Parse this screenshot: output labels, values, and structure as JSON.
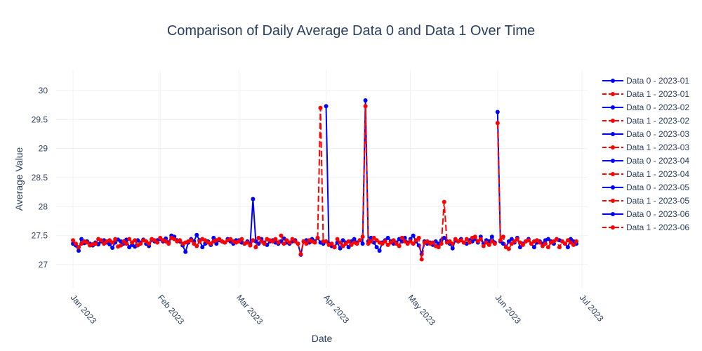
{
  "chart_data": {
    "type": "line",
    "title": "Comparison of Daily Average Data 0 and Data 1 Over Time",
    "xlabel": "Date",
    "ylabel": "Average Value",
    "xlim": [
      "2022-12-26",
      "2023-07-03"
    ],
    "ylim": [
      26.6,
      30.35
    ],
    "x_ticks": [
      "Jan 2023",
      "Feb 2023",
      "Mar 2023",
      "Apr 2023",
      "May 2023",
      "Jun 2023",
      "Jul 2023"
    ],
    "x_tick_dates": [
      "2023-01-01",
      "2023-02-01",
      "2023-03-01",
      "2023-04-01",
      "2023-05-01",
      "2023-06-01",
      "2023-07-01"
    ],
    "y_ticks": [
      27,
      27.5,
      28,
      28.5,
      29,
      29.5,
      30
    ],
    "y_tick_labels": [
      "27",
      "27.5",
      "28",
      "28.5",
      "29",
      "29.5",
      "30"
    ],
    "grid": true,
    "legend_position": "right",
    "colors": {
      "data0": "#0000ff",
      "data1": "#ff0000"
    },
    "series": [
      {
        "name": "Data 0 - 2023-01",
        "color": "#0000ff",
        "dash": "solid",
        "start": "2023-01-01",
        "values": [
          27.36,
          27.33,
          27.24,
          27.44,
          27.37,
          27.4,
          27.36,
          27.33,
          27.38,
          27.35,
          27.4,
          27.42,
          27.38,
          27.35,
          27.29,
          27.38,
          27.43,
          27.4,
          27.36,
          27.43,
          27.3,
          27.34,
          27.31,
          27.42,
          27.38,
          27.43,
          27.36,
          27.32,
          27.43,
          27.4,
          27.42
        ]
      },
      {
        "name": "Data 1 - 2023-01",
        "color": "#ff0000",
        "dash": "dash",
        "start": "2023-01-01",
        "values": [
          27.42,
          27.36,
          27.3,
          27.36,
          27.4,
          27.38,
          27.33,
          27.35,
          27.36,
          27.44,
          27.42,
          27.36,
          27.4,
          27.42,
          27.38,
          27.44,
          27.31,
          27.33,
          27.4,
          27.36,
          27.44,
          27.38,
          27.42,
          27.33,
          27.36,
          27.42,
          27.4,
          27.36,
          27.44,
          27.42,
          27.38
        ]
      },
      {
        "name": "Data 0 - 2023-02",
        "color": "#0000ff",
        "dash": "solid",
        "start": "2023-02-01",
        "values": [
          27.44,
          27.4,
          27.45,
          27.38,
          27.5,
          27.48,
          27.42,
          27.4,
          27.33,
          27.22,
          27.38,
          27.44,
          27.4,
          27.51,
          27.42,
          27.3,
          27.36,
          27.4,
          27.34,
          27.46,
          27.36,
          27.42,
          27.4,
          27.38,
          27.44,
          27.4,
          27.36,
          27.42
        ]
      },
      {
        "name": "Data 1 - 2023-02",
        "color": "#ff0000",
        "dash": "dash",
        "start": "2023-02-01",
        "values": [
          27.46,
          27.42,
          27.4,
          27.36,
          27.46,
          27.44,
          27.4,
          27.42,
          27.36,
          27.38,
          27.4,
          27.42,
          27.36,
          27.32,
          27.4,
          27.44,
          27.42,
          27.38,
          27.36,
          27.4,
          27.42,
          27.44,
          27.4,
          27.38,
          27.42,
          27.44,
          27.4,
          27.38
        ]
      },
      {
        "name": "Data 0 - 2023-03",
        "color": "#0000ff",
        "dash": "solid",
        "start": "2023-03-01",
        "values": [
          27.42,
          27.38,
          27.36,
          27.4,
          27.35,
          28.13,
          27.4,
          27.36,
          27.44,
          27.38,
          27.34,
          27.4,
          27.42,
          27.38,
          27.36,
          27.4,
          27.45,
          27.38,
          27.36,
          27.4,
          27.42,
          27.36,
          27.17,
          27.4,
          27.42,
          27.38,
          27.44,
          27.4,
          27.46,
          27.38,
          27.36
        ]
      },
      {
        "name": "Data 1 - 2023-03",
        "color": "#ff0000",
        "dash": "dash",
        "start": "2023-03-01",
        "values": [
          27.4,
          27.44,
          27.36,
          27.38,
          27.33,
          27.42,
          27.3,
          27.46,
          27.4,
          27.36,
          27.44,
          27.42,
          27.4,
          27.44,
          27.38,
          27.5,
          27.36,
          27.42,
          27.38,
          27.44,
          27.4,
          27.36,
          27.18,
          27.4,
          27.36,
          27.42,
          27.4,
          27.38,
          27.46,
          29.7,
          27.4
        ]
      },
      {
        "name": "Data 0 - 2023-04",
        "color": "#0000ff",
        "dash": "solid",
        "start": "2023-04-01",
        "values": [
          29.73,
          27.36,
          27.32,
          27.3,
          27.38,
          27.28,
          27.42,
          27.38,
          27.3,
          27.4,
          27.44,
          27.38,
          27.42,
          27.36,
          29.83,
          27.4,
          27.46,
          27.38,
          27.3,
          27.24,
          27.38,
          27.42,
          27.46,
          27.4,
          27.36,
          27.38,
          27.44,
          27.4,
          27.46,
          27.38
        ]
      },
      {
        "name": "Data 1 - 2023-04",
        "color": "#ff0000",
        "dash": "dash",
        "start": "2023-04-01",
        "values": [
          27.4,
          27.34,
          27.36,
          27.3,
          27.44,
          27.38,
          27.32,
          27.36,
          27.4,
          27.34,
          27.38,
          27.36,
          27.42,
          27.48,
          29.73,
          27.36,
          27.4,
          27.46,
          27.42,
          27.38,
          27.36,
          27.4,
          27.34,
          27.38,
          27.42,
          27.36,
          27.32,
          27.46,
          27.4,
          27.36
        ]
      },
      {
        "name": "Data 0 - 2023-05",
        "color": "#0000ff",
        "dash": "solid",
        "start": "2023-05-01",
        "values": [
          27.44,
          27.5,
          27.4,
          27.33,
          27.18,
          27.4,
          27.36,
          27.38,
          27.34,
          27.4,
          27.36,
          27.42,
          27.46,
          27.4,
          27.36,
          27.28,
          27.42,
          27.4,
          27.44,
          27.38,
          27.36,
          27.42,
          27.4,
          27.44,
          27.38,
          27.48,
          27.36,
          27.42,
          27.4,
          27.48,
          27.38
        ]
      },
      {
        "name": "Data 1 - 2023-05",
        "color": "#ff0000",
        "dash": "dash",
        "start": "2023-05-01",
        "values": [
          27.4,
          27.36,
          27.42,
          27.46,
          27.09,
          27.38,
          27.4,
          27.36,
          27.38,
          27.32,
          27.3,
          27.36,
          28.08,
          27.38,
          27.4,
          27.36,
          27.44,
          27.4,
          27.42,
          27.38,
          27.44,
          27.38,
          27.46,
          27.48,
          27.4,
          27.44,
          27.32,
          27.38,
          27.34,
          27.4,
          27.36
        ]
      },
      {
        "name": "Data 0 - 2023-06",
        "color": "#0000ff",
        "dash": "solid",
        "start": "2023-06-01",
        "values": [
          29.63,
          27.4,
          27.36,
          27.3,
          27.4,
          27.44,
          27.38,
          27.46,
          27.3,
          27.36,
          27.4,
          27.44,
          27.36,
          27.3,
          27.38,
          27.4,
          27.36,
          27.42,
          27.44,
          27.4,
          27.36,
          27.44,
          27.42,
          27.4,
          27.36,
          27.3,
          27.44,
          27.4,
          27.36
        ]
      },
      {
        "name": "Data 1 - 2023-06",
        "color": "#ff0000",
        "dash": "dash",
        "start": "2023-06-01",
        "values": [
          29.44,
          27.42,
          27.48,
          27.3,
          27.27,
          27.36,
          27.4,
          27.44,
          27.38,
          27.34,
          27.4,
          27.42,
          27.36,
          27.4,
          27.42,
          27.38,
          27.32,
          27.36,
          27.3,
          27.38,
          27.4,
          27.44,
          27.3,
          27.4,
          27.36,
          27.42,
          27.38,
          27.34,
          27.4
        ]
      }
    ]
  }
}
